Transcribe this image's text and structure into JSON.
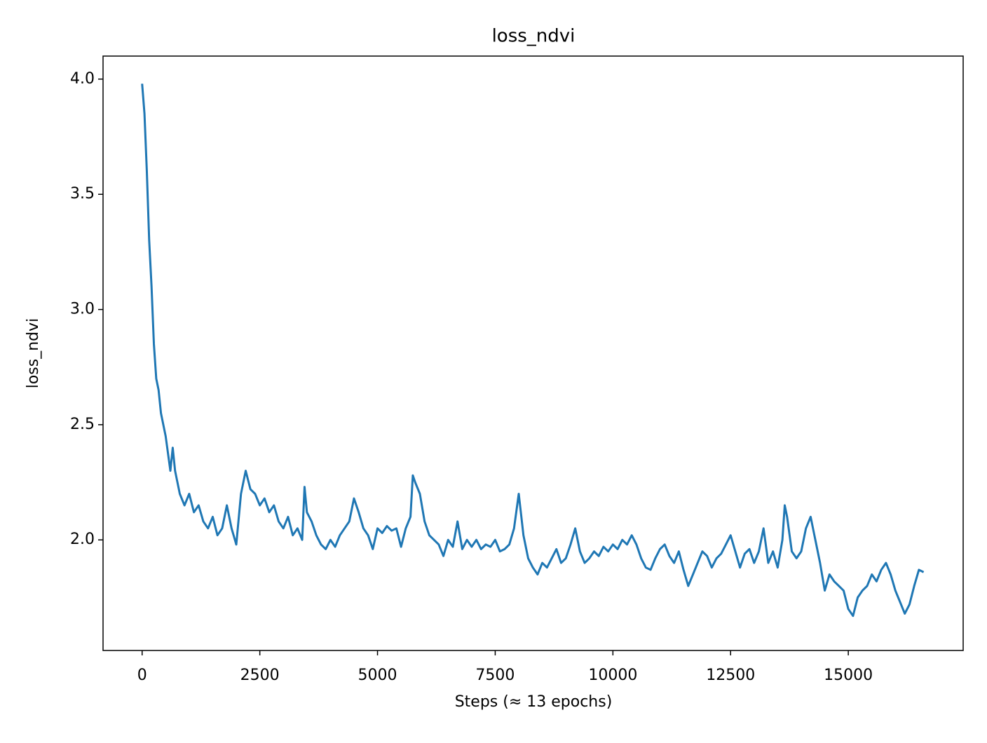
{
  "chart_data": {
    "type": "line",
    "title": "loss_ndvi",
    "xlabel": "Steps (≈ 13 epochs)",
    "ylabel": "loss_ndvi",
    "x": [
      0,
      50,
      100,
      150,
      200,
      250,
      300,
      350,
      400,
      500,
      600,
      650,
      700,
      800,
      900,
      1000,
      1100,
      1200,
      1300,
      1400,
      1500,
      1600,
      1700,
      1800,
      1900,
      2000,
      2100,
      2200,
      2300,
      2400,
      2500,
      2600,
      2700,
      2800,
      2900,
      3000,
      3100,
      3200,
      3300,
      3400,
      3450,
      3500,
      3600,
      3700,
      3800,
      3900,
      4000,
      4100,
      4200,
      4300,
      4400,
      4500,
      4600,
      4700,
      4800,
      4900,
      5000,
      5100,
      5200,
      5300,
      5400,
      5500,
      5600,
      5700,
      5750,
      5800,
      5900,
      6000,
      6100,
      6200,
      6300,
      6400,
      6500,
      6600,
      6700,
      6800,
      6900,
      7000,
      7100,
      7200,
      7300,
      7400,
      7500,
      7600,
      7700,
      7800,
      7900,
      8000,
      8100,
      8200,
      8300,
      8400,
      8500,
      8600,
      8700,
      8800,
      8900,
      9000,
      9100,
      9200,
      9300,
      9400,
      9500,
      9600,
      9700,
      9800,
      9900,
      10000,
      10100,
      10200,
      10300,
      10400,
      10500,
      10600,
      10700,
      10800,
      10900,
      11000,
      11100,
      11200,
      11300,
      11400,
      11500,
      11600,
      11700,
      11800,
      11900,
      12000,
      12100,
      12200,
      12300,
      12400,
      12500,
      12600,
      12700,
      12800,
      12900,
      13000,
      13100,
      13200,
      13300,
      13400,
      13500,
      13600,
      13650,
      13700,
      13800,
      13900,
      14000,
      14100,
      14200,
      14300,
      14400,
      14500,
      14600,
      14700,
      14800,
      14900,
      15000,
      15100,
      15200,
      15300,
      15400,
      15500,
      15600,
      15700,
      15800,
      15900,
      16000,
      16100,
      16200,
      16300,
      16400,
      16500,
      16600
    ],
    "series": [
      {
        "name": "loss_ndvi",
        "color": "#1f77b4",
        "values": [
          3.98,
          3.85,
          3.6,
          3.3,
          3.1,
          2.85,
          2.7,
          2.65,
          2.55,
          2.45,
          2.3,
          2.4,
          2.3,
          2.2,
          2.15,
          2.2,
          2.12,
          2.15,
          2.08,
          2.05,
          2.1,
          2.02,
          2.05,
          2.15,
          2.05,
          1.98,
          2.2,
          2.3,
          2.22,
          2.2,
          2.15,
          2.18,
          2.12,
          2.15,
          2.08,
          2.05,
          2.1,
          2.02,
          2.05,
          2.0,
          2.23,
          2.12,
          2.08,
          2.02,
          1.98,
          1.96,
          2.0,
          1.97,
          2.02,
          2.05,
          2.08,
          2.18,
          2.12,
          2.05,
          2.02,
          1.96,
          2.05,
          2.03,
          2.06,
          2.04,
          2.05,
          1.97,
          2.05,
          2.1,
          2.28,
          2.25,
          2.2,
          2.08,
          2.02,
          2.0,
          1.98,
          1.93,
          2.0,
          1.97,
          2.08,
          1.96,
          2.0,
          1.97,
          2.0,
          1.96,
          1.98,
          1.97,
          2.0,
          1.95,
          1.96,
          1.98,
          2.05,
          2.2,
          2.02,
          1.92,
          1.88,
          1.85,
          1.9,
          1.88,
          1.92,
          1.96,
          1.9,
          1.92,
          1.98,
          2.05,
          1.95,
          1.9,
          1.92,
          1.95,
          1.93,
          1.97,
          1.95,
          1.98,
          1.96,
          2.0,
          1.98,
          2.02,
          1.98,
          1.92,
          1.88,
          1.87,
          1.92,
          1.96,
          1.98,
          1.93,
          1.9,
          1.95,
          1.87,
          1.8,
          1.85,
          1.9,
          1.95,
          1.93,
          1.88,
          1.92,
          1.94,
          1.98,
          2.02,
          1.95,
          1.88,
          1.94,
          1.96,
          1.9,
          1.95,
          2.05,
          1.9,
          1.95,
          1.88,
          2.0,
          2.15,
          2.1,
          1.95,
          1.92,
          1.95,
          2.05,
          2.1,
          2.0,
          1.9,
          1.78,
          1.85,
          1.82,
          1.8,
          1.78,
          1.7,
          1.67,
          1.75,
          1.78,
          1.8,
          1.85,
          1.82,
          1.87,
          1.9,
          1.85,
          1.78,
          1.73,
          1.68,
          1.72,
          1.8,
          1.87,
          1.86
        ]
      }
    ],
    "xlim": [
      -830,
      17440
    ],
    "ylim": [
      1.52,
      4.1
    ],
    "xticks": [
      0,
      2500,
      5000,
      7500,
      10000,
      12500,
      15000
    ],
    "yticks": [
      {
        "value": 2,
        "label": "2.0"
      },
      {
        "value": 2.5,
        "label": "2.5"
      },
      {
        "value": 3,
        "label": "3.0"
      },
      {
        "value": 3.5,
        "label": "3.5"
      },
      {
        "value": 4,
        "label": "4.0"
      }
    ]
  }
}
